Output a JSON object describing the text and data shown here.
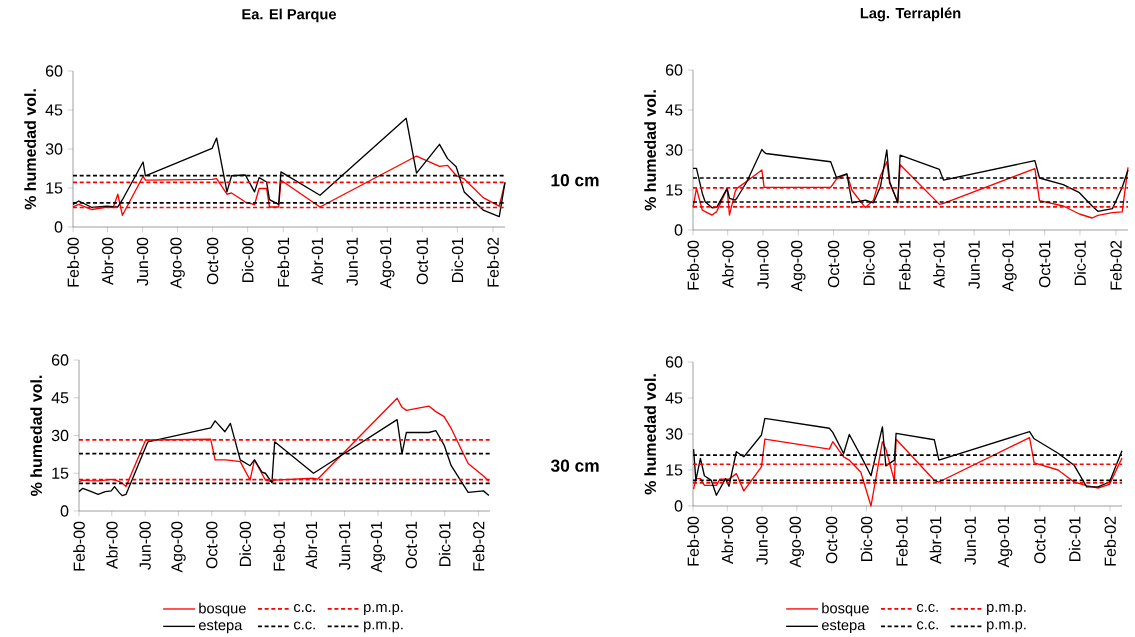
{
  "chart_data": [
    {
      "type": "line",
      "title": "Ea. El Parque",
      "ylabel": "% humedad vol.",
      "annotations": [
        "10 cm"
      ],
      "legend": false,
      "xlim": [
        "2000-02-01",
        "2002-02-22"
      ],
      "ylim": [
        0,
        60
      ],
      "yticks": [
        0,
        15,
        30,
        45,
        60
      ],
      "xticks": [
        {
          "value": "2000-02",
          "label": "Feb-00"
        },
        {
          "value": "2000-04",
          "label": "Abr-00"
        },
        {
          "value": "2000-06",
          "label": "Jun-00"
        },
        {
          "value": "2000-08",
          "label": "Ago-00"
        },
        {
          "value": "2000-10",
          "label": "Oct-00"
        },
        {
          "value": "2000-12",
          "label": "Dic-00"
        },
        {
          "value": "2001-02",
          "label": "Feb-01"
        },
        {
          "value": "2001-04",
          "label": "Abr-01"
        },
        {
          "value": "2001-06",
          "label": "Jun-01"
        },
        {
          "value": "2001-08",
          "label": "Ago-01"
        },
        {
          "value": "2001-10",
          "label": "Oct-01"
        },
        {
          "value": "2001-12",
          "label": "Dic-01"
        },
        {
          "value": "2002-02",
          "label": "Feb-02"
        }
      ],
      "x": [
        "2000-02-01",
        "2000-02-11",
        "2000-03-05",
        "2000-03-31",
        "2000-04-11",
        "2000-04-19",
        "2000-04-27",
        "2000-06-02",
        "2000-06-06",
        "2000-09-30",
        "2000-10-08",
        "2000-10-26",
        "2000-11-03",
        "2000-11-27",
        "2000-12-13",
        "2000-12-21",
        "2001-01-03",
        "2001-01-08",
        "2001-01-24",
        "2001-01-28",
        "2001-04-06",
        "2001-09-03",
        "2001-09-21",
        "2001-10-31",
        "2001-11-14",
        "2001-11-29",
        "2001-12-13",
        "2002-01-15",
        "2002-02-12",
        "2002-02-22"
      ],
      "series": [
        {
          "color": "#ff0000",
          "values": [
            7.7,
            8.7,
            6.7,
            7.7,
            7.5,
            12.6,
            4.5,
            19.5,
            18,
            18.3,
            18.6,
            12.6,
            13.1,
            9.6,
            8.6,
            14.8,
            14.8,
            7.7,
            7.7,
            18,
            7.7,
            25.2,
            27.3,
            23.3,
            23.7,
            19.8,
            18.5,
            11.3,
            8,
            17.2
          ]
        },
        {
          "color": "#000000",
          "values": [
            8.7,
            10,
            7.5,
            8,
            7.8,
            7.7,
            10.5,
            25,
            19.7,
            30.2,
            34.2,
            13.5,
            19.7,
            20,
            13.5,
            19,
            17.3,
            10.5,
            8.7,
            21.2,
            12.2,
            41.8,
            20.7,
            31.8,
            26.3,
            23.2,
            13.5,
            6.5,
            4,
            17.2
          ]
        }
      ],
      "ref_lines": [
        {
          "axis": "y",
          "value": 17.2,
          "color": "#ff0000",
          "line_style": "dashed"
        },
        {
          "axis": "y",
          "value": 19.8,
          "color": "#000000",
          "line_style": "dashed"
        },
        {
          "axis": "y",
          "value": 7.5,
          "color": "#ff0000",
          "line_style": "dashed"
        },
        {
          "axis": "y",
          "value": 9.3,
          "color": "#000000",
          "line_style": "dashed"
        }
      ]
    },
    {
      "type": "line",
      "title": "Lag. Terraplén",
      "ylabel": "% humedad vol.",
      "legend": false,
      "xlim": [
        "2000-02-01",
        "2002-02-22"
      ],
      "ylim": [
        0,
        60
      ],
      "yticks": [
        0,
        15,
        30,
        45,
        60
      ],
      "xticks": [
        {
          "value": "2000-02",
          "label": "Feb-00"
        },
        {
          "value": "2000-04",
          "label": "Abr-00"
        },
        {
          "value": "2000-06",
          "label": "Jun-00"
        },
        {
          "value": "2000-08",
          "label": "Ago-00"
        },
        {
          "value": "2000-10",
          "label": "Oct-00"
        },
        {
          "value": "2000-12",
          "label": "Dic-00"
        },
        {
          "value": "2001-02",
          "label": "Feb-01"
        },
        {
          "value": "2001-04",
          "label": "Abr-01"
        },
        {
          "value": "2001-06",
          "label": "Jun-01"
        },
        {
          "value": "2001-08",
          "label": "Ago-01"
        },
        {
          "value": "2001-10",
          "label": "Oct-01"
        },
        {
          "value": "2001-12",
          "label": "Dic-01"
        },
        {
          "value": "2002-02",
          "label": "Feb-02"
        }
      ],
      "x": [
        "2000-02-01",
        "2000-02-07",
        "2000-02-17",
        "2000-02-22",
        "2000-03-05",
        "2000-03-13",
        "2000-03-31",
        "2000-04-04",
        "2000-04-14",
        "2000-04-17",
        "2000-05-04",
        "2000-05-30",
        "2000-06-03",
        "2000-06-06",
        "2000-09-26",
        "2000-10-06",
        "2000-10-24",
        "2000-11-02",
        "2000-11-25",
        "2000-12-09",
        "2000-12-21",
        "2001-01-01",
        "2001-01-06",
        "2001-01-20",
        "2001-01-24",
        "2001-04-02",
        "2001-04-09",
        "2001-09-14",
        "2001-09-22",
        "2001-11-02",
        "2001-11-30",
        "2001-12-22",
        "2002-01-01",
        "2002-01-26",
        "2002-02-12",
        "2002-02-22"
      ],
      "series": [
        {
          "color": "#ff0000",
          "values": [
            8.5,
            15.6,
            7.5,
            6.9,
            5.6,
            6.9,
            15.6,
            5.6,
            14.5,
            15.6,
            18.3,
            22.5,
            16,
            16,
            16,
            19.1,
            21,
            14.8,
            8.4,
            11.2,
            20.2,
            25.6,
            17.5,
            10.5,
            24.5,
            9.6,
            10,
            23,
            11,
            9,
            6,
            4.5,
            5.5,
            6.5,
            6.8,
            23.5
          ]
        },
        {
          "color": "#000000",
          "values": [
            23.1,
            23.1,
            13.8,
            10.6,
            8.3,
            8.5,
            15.6,
            11.9,
            11.2,
            12,
            18.1,
            30.2,
            29.2,
            28.7,
            25.6,
            19.7,
            21,
            10.2,
            11.2,
            10.2,
            16.2,
            30,
            18.1,
            10.2,
            28.1,
            22.7,
            18.7,
            26,
            19.5,
            17,
            14,
            9,
            7,
            8,
            16,
            22.5
          ]
        }
      ],
      "ref_lines": [
        {
          "axis": "y",
          "value": 15.8,
          "color": "#ff0000",
          "line_style": "dashed"
        },
        {
          "axis": "y",
          "value": 19.5,
          "color": "#000000",
          "line_style": "dashed"
        },
        {
          "axis": "y",
          "value": 8.7,
          "color": "#ff0000",
          "line_style": "dashed"
        },
        {
          "axis": "y",
          "value": 10.5,
          "color": "#000000",
          "line_style": "dashed"
        }
      ]
    },
    {
      "type": "line",
      "ylabel": "% humedad vol.",
      "annotations": [
        "30 cm"
      ],
      "legend": "bottom",
      "xlim": [
        "2000-02-01",
        "2002-02-22"
      ],
      "ylim": [
        0,
        60
      ],
      "yticks": [
        0,
        15,
        30,
        45,
        60
      ],
      "xticks": [
        {
          "value": "2000-02",
          "label": "Feb-00"
        },
        {
          "value": "2000-04",
          "label": "Abr-00"
        },
        {
          "value": "2000-06",
          "label": "Jun-00"
        },
        {
          "value": "2000-08",
          "label": "Ago-00"
        },
        {
          "value": "2000-10",
          "label": "Oct-00"
        },
        {
          "value": "2000-12",
          "label": "Dic-00"
        },
        {
          "value": "2001-02",
          "label": "Feb-01"
        },
        {
          "value": "2001-04",
          "label": "Abr-01"
        },
        {
          "value": "2001-06",
          "label": "Jun-01"
        },
        {
          "value": "2001-08",
          "label": "Ago-01"
        },
        {
          "value": "2001-10",
          "label": "Oct-01"
        },
        {
          "value": "2001-12",
          "label": "Dic-01"
        },
        {
          "value": "2002-02",
          "label": "Feb-02"
        }
      ],
      "x": [
        "2000-02-01",
        "2000-02-08",
        "2000-02-20",
        "2000-03-07",
        "2000-03-20",
        "2000-03-31",
        "2000-04-06",
        "2000-04-15",
        "2000-04-20",
        "2000-04-27",
        "2000-06-02",
        "2000-06-06",
        "2000-09-29",
        "2000-10-07",
        "2000-10-25",
        "2000-11-04",
        "2000-11-22",
        "2000-12-10",
        "2000-12-18",
        "2001-01-01",
        "2001-01-07",
        "2001-01-19",
        "2001-01-24",
        "2001-04-05",
        "2001-04-13",
        "2001-09-05",
        "2001-09-14",
        "2001-09-22",
        "2001-11-02",
        "2001-11-15",
        "2001-11-30",
        "2001-12-13",
        "2002-01-13",
        "2002-02-10",
        "2002-02-20"
      ],
      "series": [
        {
          "name": "bosque",
          "color": "#ff0000",
          "values": [
            11.7,
            12.3,
            12.1,
            12,
            12.3,
            12.6,
            12.4,
            11.7,
            11,
            9.7,
            28.2,
            28.2,
            28.5,
            20.3,
            20.3,
            20.1,
            19.6,
            12.3,
            20.3,
            14.7,
            12.3,
            11.7,
            12.3,
            13,
            12.7,
            44.8,
            41.2,
            40,
            41.7,
            39.5,
            37.5,
            32.8,
            18.9,
            13.9,
            11.8
          ]
        },
        {
          "name": "estepa",
          "color": "#000000",
          "values": [
            7.7,
            9,
            8,
            6.6,
            7.7,
            8,
            9.7,
            7.2,
            6.1,
            6.6,
            25.4,
            27.5,
            33,
            35.8,
            31.5,
            34.8,
            20.3,
            18,
            20.3,
            15.4,
            15,
            11.3,
            27.5,
            15,
            16.1,
            36.3,
            22.8,
            31.2,
            31.2,
            31.9,
            26.2,
            18,
            7.4,
            8,
            6.2
          ]
        }
      ],
      "ref_lines": [
        {
          "axis": "y",
          "value": 28.3,
          "label": "c.c.",
          "color": "#ff0000",
          "line_style": "dashed"
        },
        {
          "axis": "y",
          "value": 22.8,
          "label": "c.c.",
          "color": "#000000",
          "line_style": "dashed"
        },
        {
          "axis": "y",
          "value": 12.5,
          "label": "p.m.p.",
          "color": "#ff0000",
          "line_style": "dashed"
        },
        {
          "axis": "y",
          "value": 11,
          "label": "p.m.p.",
          "color": "#000000",
          "line_style": "dashed"
        }
      ]
    },
    {
      "type": "line",
      "ylabel": "% humedad vol.",
      "legend": "bottom",
      "xlim": [
        "2000-02-01",
        "2002-02-22"
      ],
      "ylim": [
        0,
        60
      ],
      "yticks": [
        0,
        15,
        30,
        45,
        60
      ],
      "xticks": [
        {
          "value": "2000-02",
          "label": "Feb-00"
        },
        {
          "value": "2000-04",
          "label": "Abr-00"
        },
        {
          "value": "2000-06",
          "label": "Jun-00"
        },
        {
          "value": "2000-08",
          "label": "Ago-00"
        },
        {
          "value": "2000-10",
          "label": "Oct-00"
        },
        {
          "value": "2000-12",
          "label": "Dic-00"
        },
        {
          "value": "2001-02",
          "label": "Feb-01"
        },
        {
          "value": "2001-04",
          "label": "Abr-01"
        },
        {
          "value": "2001-06",
          "label": "Jun-01"
        },
        {
          "value": "2001-08",
          "label": "Ago-01"
        },
        {
          "value": "2001-10",
          "label": "Oct-01"
        },
        {
          "value": "2001-12",
          "label": "Dic-01"
        },
        {
          "value": "2002-02",
          "label": "Feb-02"
        }
      ],
      "x": [
        "2000-02-02",
        "2000-02-06",
        "2000-02-14",
        "2000-02-21",
        "2000-03-04",
        "2000-03-13",
        "2000-03-19",
        "2000-03-29",
        "2000-04-04",
        "2000-04-17",
        "2000-04-30",
        "2000-05-31",
        "2000-06-06",
        "2000-09-27",
        "2000-10-03",
        "2000-10-22",
        "2000-11-01",
        "2000-11-21",
        "2000-12-09",
        "2000-12-29",
        "2001-01-04",
        "2001-01-19",
        "2001-01-22",
        "2001-03-30",
        "2001-04-07",
        "2001-09-13",
        "2001-09-21",
        "2001-11-02",
        "2001-11-30",
        "2001-12-22",
        "2002-01-11",
        "2002-01-31",
        "2002-02-22"
      ],
      "series": [
        {
          "name": "bosque",
          "color": "#ff0000",
          "values": [
            7,
            11.4,
            11.4,
            8.6,
            8.6,
            8.6,
            11.2,
            11.2,
            11.2,
            13.5,
            6.3,
            16.3,
            27.9,
            23.7,
            26.8,
            20.5,
            19.1,
            14.2,
            0,
            26.8,
            23.8,
            10.5,
            27.8,
            10.7,
            10,
            28.5,
            18,
            15,
            10,
            8.5,
            7.5,
            9,
            20
          ]
        },
        {
          "name": "estepa",
          "color": "#000000",
          "values": [
            23.7,
            10.7,
            19.8,
            12.6,
            10.7,
            4.5,
            7.1,
            11.4,
            8.2,
            22.6,
            20.5,
            29.6,
            36.5,
            32.4,
            30.7,
            21.9,
            29.8,
            21,
            12.6,
            33,
            16.7,
            19.1,
            30.3,
            27.6,
            19.1,
            31,
            28,
            22,
            17,
            8,
            8,
            10,
            23
          ]
        }
      ],
      "ref_lines": [
        {
          "axis": "y",
          "value": 17.4,
          "label": "c.c.",
          "color": "#ff0000",
          "line_style": "dashed"
        },
        {
          "axis": "y",
          "value": 21.2,
          "label": "c.c.",
          "color": "#000000",
          "line_style": "dashed"
        },
        {
          "axis": "y",
          "value": 9.6,
          "label": "p.m.p.",
          "color": "#ff0000",
          "line_style": "dashed"
        },
        {
          "axis": "y",
          "value": 10.7,
          "label": "p.m.p.",
          "color": "#000000",
          "line_style": "dashed"
        }
      ]
    }
  ]
}
